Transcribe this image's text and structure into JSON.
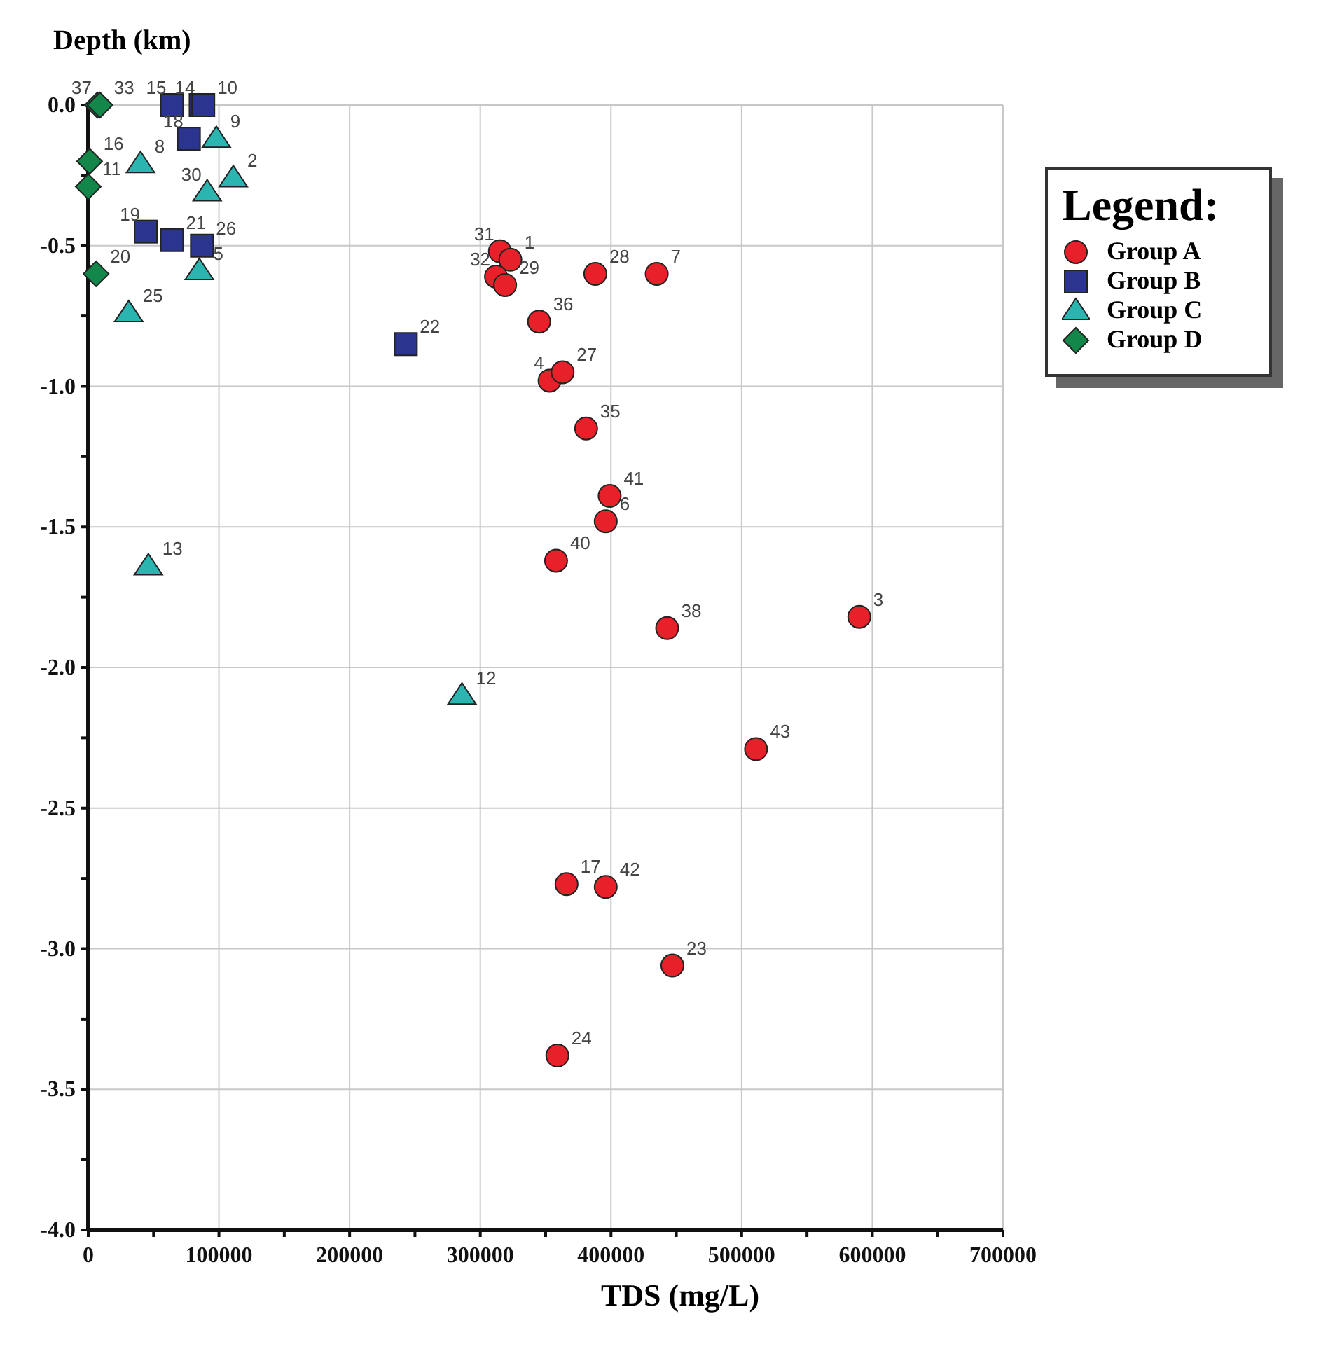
{
  "chart_data": {
    "type": "scatter",
    "xlabel": "TDS (mg/L)",
    "ylabel": "Depth (km)",
    "legend_title": "Legend:",
    "legend": "top right",
    "grid": true,
    "xlim": [
      0,
      700000
    ],
    "ylim": [
      -4,
      0
    ],
    "xticks": [
      0,
      {
        "value": 50000,
        "label": null
      },
      100000,
      {
        "value": 150000,
        "label": null
      },
      200000,
      {
        "value": 250000,
        "label": null
      },
      300000,
      {
        "value": 350000,
        "label": null
      },
      400000,
      {
        "value": 450000,
        "label": null
      },
      500000,
      {
        "value": 550000,
        "label": null
      },
      600000,
      {
        "value": 650000,
        "label": null
      },
      700000
    ],
    "yticks": [
      {
        "value": 0,
        "label": "0.0"
      },
      {
        "value": -0.25,
        "label": null
      },
      -0.5,
      {
        "value": -0.75,
        "label": null
      },
      {
        "value": -1,
        "label": "-1.0"
      },
      {
        "value": -1.25,
        "label": null
      },
      -1.5,
      {
        "value": -1.75,
        "label": null
      },
      {
        "value": -2,
        "label": "-2.0"
      },
      {
        "value": -2.25,
        "label": null
      },
      -2.5,
      {
        "value": -2.75,
        "label": null
      },
      {
        "value": -3,
        "label": "-3.0"
      },
      {
        "value": -3.25,
        "label": null
      },
      -3.5,
      {
        "value": -3.75,
        "label": null
      },
      {
        "value": -4,
        "label": "-4.0"
      }
    ],
    "series": [
      {
        "name": "Group A",
        "color": "#e8202a",
        "marker": "circle",
        "x": [
          315000,
          323000,
          312000,
          319000,
          388000,
          435000,
          345000,
          353000,
          363000,
          381000,
          399000,
          396000,
          358000,
          443000,
          590000,
          511000,
          366000,
          396000,
          447000,
          359000
        ],
        "values": [
          -0.52,
          -0.55,
          -0.61,
          -0.64,
          -0.6,
          -0.6,
          -0.77,
          -0.98,
          -0.95,
          -1.15,
          -1.39,
          -1.48,
          -1.62,
          -1.86,
          -1.82,
          -2.29,
          -2.77,
          -2.78,
          -3.06,
          -3.38
        ]
      },
      {
        "name": "Group B",
        "color": "#2b3590",
        "marker": "square",
        "x": [
          64000,
          86000,
          88000,
          77000,
          44000,
          64000,
          87000,
          243000
        ],
        "values": [
          0,
          0,
          0,
          -0.12,
          -0.45,
          -0.48,
          -0.5,
          -0.85
        ]
      },
      {
        "name": "Group C",
        "color": "#2ab5b0",
        "marker": "triangle",
        "x": [
          98000,
          40000,
          111000,
          91000,
          85000,
          31000,
          46000,
          286000
        ],
        "values": [
          -0.12,
          -0.21,
          -0.26,
          -0.31,
          -0.59,
          -0.74,
          -1.64,
          -2.1
        ]
      },
      {
        "name": "Group D",
        "color": "#13874a",
        "marker": "diamond",
        "x": [
          7000,
          9000,
          1000,
          0,
          6000
        ],
        "values": [
          0,
          0,
          -0.2,
          -0.29,
          -0.6
        ]
      }
    ],
    "annotations": [
      {
        "text": "31",
        "x": 315000,
        "y": -0.52
      },
      {
        "text": "1",
        "x": 323000,
        "y": -0.55
      },
      {
        "text": "32",
        "x": 312000,
        "y": -0.61
      },
      {
        "text": "29",
        "x": 319000,
        "y": -0.64
      },
      {
        "text": "28",
        "x": 388000,
        "y": -0.6
      },
      {
        "text": "7",
        "x": 435000,
        "y": -0.6
      },
      {
        "text": "36",
        "x": 345000,
        "y": -0.77
      },
      {
        "text": "4",
        "x": 353000,
        "y": -0.98
      },
      {
        "text": "27",
        "x": 363000,
        "y": -0.95
      },
      {
        "text": "35",
        "x": 381000,
        "y": -1.15
      },
      {
        "text": "41",
        "x": 399000,
        "y": -1.39
      },
      {
        "text": "6",
        "x": 396000,
        "y": -1.48
      },
      {
        "text": "40",
        "x": 358000,
        "y": -1.62
      },
      {
        "text": "38",
        "x": 443000,
        "y": -1.86
      },
      {
        "text": "3",
        "x": 590000,
        "y": -1.82
      },
      {
        "text": "43",
        "x": 511000,
        "y": -2.29
      },
      {
        "text": "17",
        "x": 366000,
        "y": -2.77
      },
      {
        "text": "42",
        "x": 396000,
        "y": -2.78
      },
      {
        "text": "23",
        "x": 447000,
        "y": -3.06
      },
      {
        "text": "24",
        "x": 359000,
        "y": -3.38
      },
      {
        "text": "15",
        "x": 64000,
        "y": 0
      },
      {
        "text": "14",
        "x": 86000,
        "y": 0
      },
      {
        "text": "10",
        "x": 88000,
        "y": 0
      },
      {
        "text": "18",
        "x": 77000,
        "y": -0.12
      },
      {
        "text": "19",
        "x": 44000,
        "y": -0.45
      },
      {
        "text": "21",
        "x": 64000,
        "y": -0.48
      },
      {
        "text": "26",
        "x": 87000,
        "y": -0.5
      },
      {
        "text": "22",
        "x": 243000,
        "y": -0.85
      },
      {
        "text": "9",
        "x": 98000,
        "y": -0.12
      },
      {
        "text": "8",
        "x": 40000,
        "y": -0.21
      },
      {
        "text": "2",
        "x": 111000,
        "y": -0.26
      },
      {
        "text": "30",
        "x": 91000,
        "y": -0.31
      },
      {
        "text": "5",
        "x": 85000,
        "y": -0.59
      },
      {
        "text": "25",
        "x": 31000,
        "y": -0.74
      },
      {
        "text": "13",
        "x": 46000,
        "y": -1.64
      },
      {
        "text": "12",
        "x": 286000,
        "y": -2.1
      },
      {
        "text": "37",
        "x": 7000,
        "y": 0
      },
      {
        "text": "33",
        "x": 9000,
        "y": 0
      },
      {
        "text": "16",
        "x": 1000,
        "y": -0.2
      },
      {
        "text": "11",
        "x": 0,
        "y": -0.29
      },
      {
        "text": "20",
        "x": 6000,
        "y": -0.6
      }
    ]
  }
}
